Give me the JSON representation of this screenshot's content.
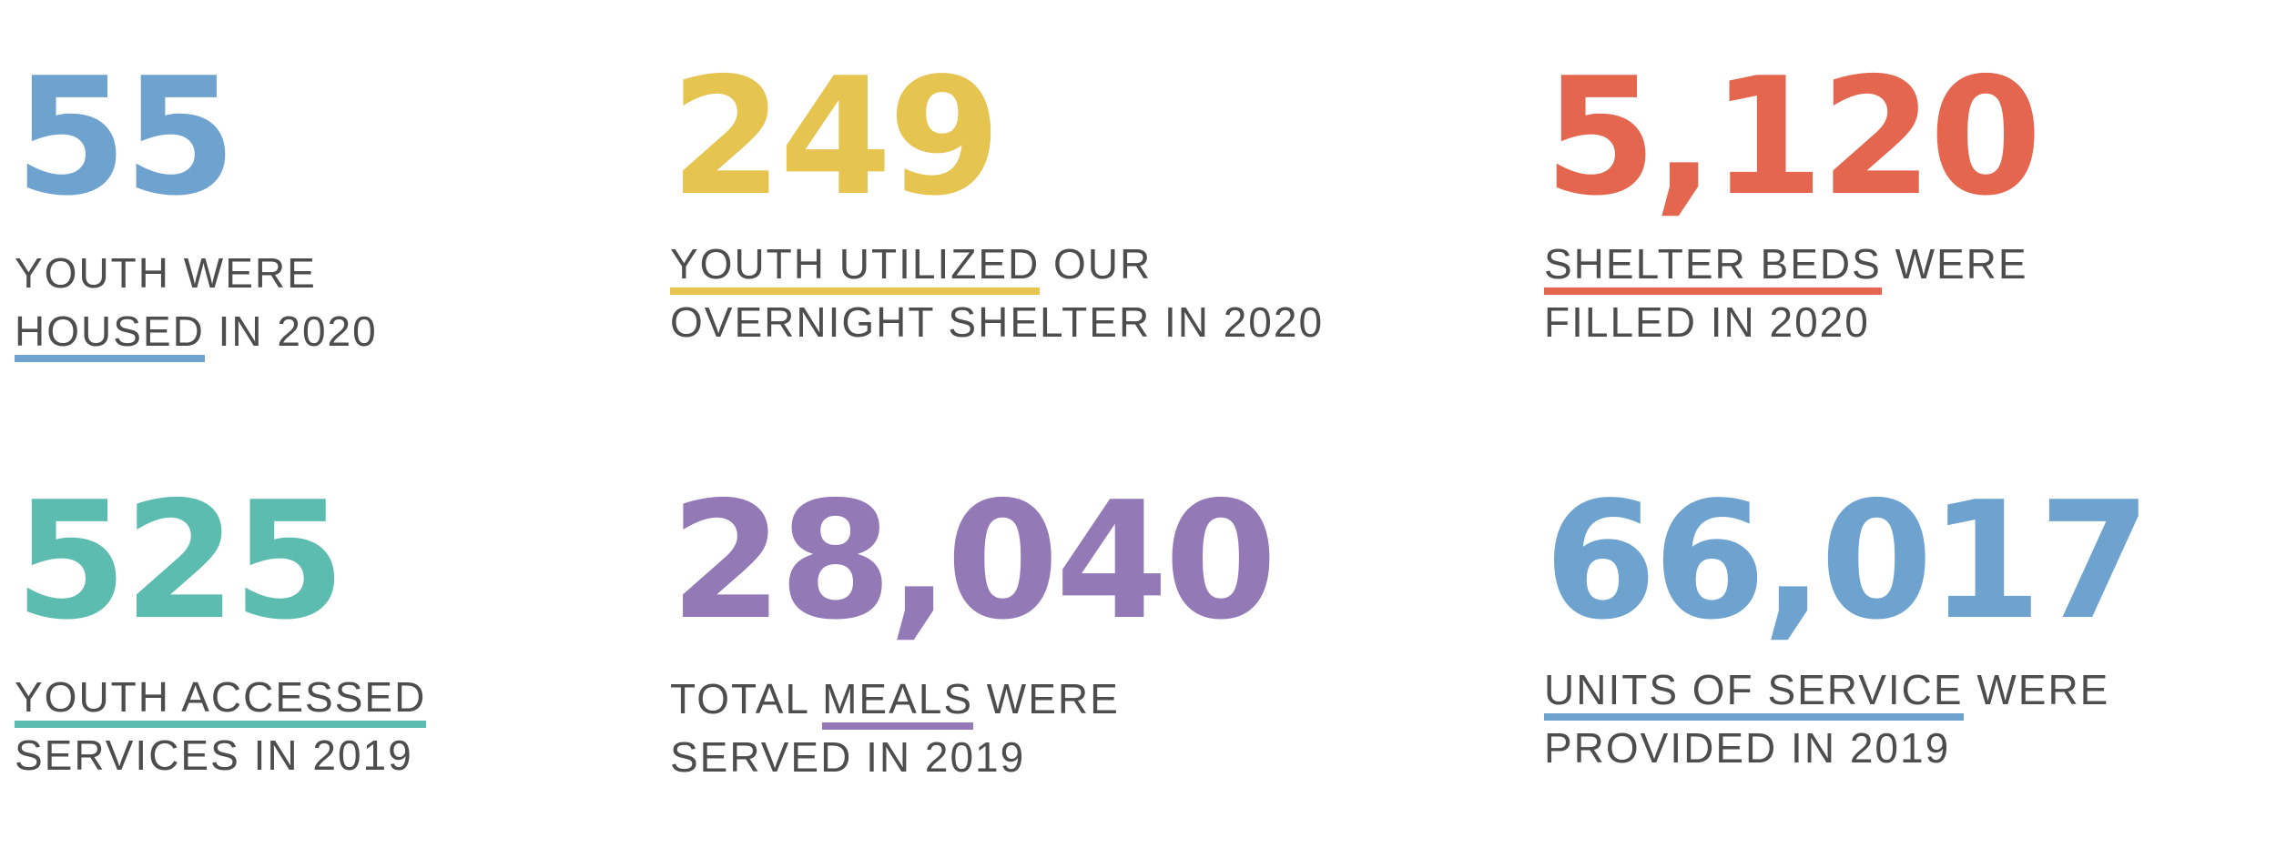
{
  "stats": [
    {
      "number": "55",
      "color": "#6fa3cf",
      "line1": {
        "pre": "YOUTH WERE",
        "hl": "",
        "post": ""
      },
      "line2": {
        "pre": "",
        "hl": "HOUSED",
        "post": " IN 2020"
      }
    },
    {
      "number": "249",
      "color": "#e5c450",
      "line1": {
        "pre": "",
        "hl": "YOUTH UTILIZED",
        "post": " OUR"
      },
      "line2": {
        "pre": "OVERNIGHT SHELTER IN 2020",
        "hl": "",
        "post": ""
      }
    },
    {
      "number": "5,120",
      "color": "#e4664e",
      "line1": {
        "pre": "",
        "hl": "SHELTER BEDS",
        "post": " WERE"
      },
      "line2": {
        "pre": "FILLED IN 2020",
        "hl": "",
        "post": ""
      }
    },
    {
      "number": "525",
      "color": "#5dbcb0",
      "line1": {
        "pre": "",
        "hl": "YOUTH ACCESSED",
        "post": ""
      },
      "line2": {
        "pre": "SERVICES IN 2019",
        "hl": "",
        "post": ""
      }
    },
    {
      "number": "28,040",
      "color": "#9479b7",
      "line1": {
        "pre": "TOTAL ",
        "hl": "MEALS",
        "post": " WERE"
      },
      "line2": {
        "pre": "SERVED IN 2019",
        "hl": "",
        "post": ""
      }
    },
    {
      "number": "66,017",
      "color": "#6fa3cf",
      "line1": {
        "pre": "",
        "hl": "UNITS OF SERVICE",
        "post": " WERE"
      },
      "line2": {
        "pre": "PROVIDED IN 2019",
        "hl": "",
        "post": ""
      }
    }
  ]
}
